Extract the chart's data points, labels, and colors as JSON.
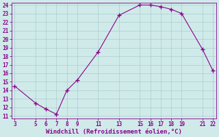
{
  "x": [
    3,
    5,
    6,
    7,
    8,
    9,
    11,
    13,
    15,
    16,
    17,
    18,
    19,
    21,
    22
  ],
  "y": [
    14.5,
    12.5,
    11.8,
    11.2,
    14.0,
    15.2,
    18.5,
    22.8,
    24.0,
    24.0,
    23.8,
    23.5,
    23.0,
    18.8,
    16.3
  ],
  "xlim_min": 3,
  "xlim_max": 22,
  "ylim_min": 11,
  "ylim_max": 24,
  "xticks": [
    3,
    5,
    6,
    7,
    8,
    9,
    11,
    13,
    15,
    16,
    17,
    18,
    19,
    21,
    22
  ],
  "yticks": [
    11,
    12,
    13,
    14,
    15,
    16,
    17,
    18,
    19,
    20,
    21,
    22,
    23,
    24
  ],
  "xlabel": "Windchill (Refroidissement éolien,°C)",
  "line_color": "#880088",
  "marker_color": "#880088",
  "bg_color": "#d0eaea",
  "grid_color": "#a8cccc",
  "tick_color": "#880088",
  "label_color": "#880088",
  "tick_fontsize": 5.5,
  "xlabel_fontsize": 6.5
}
